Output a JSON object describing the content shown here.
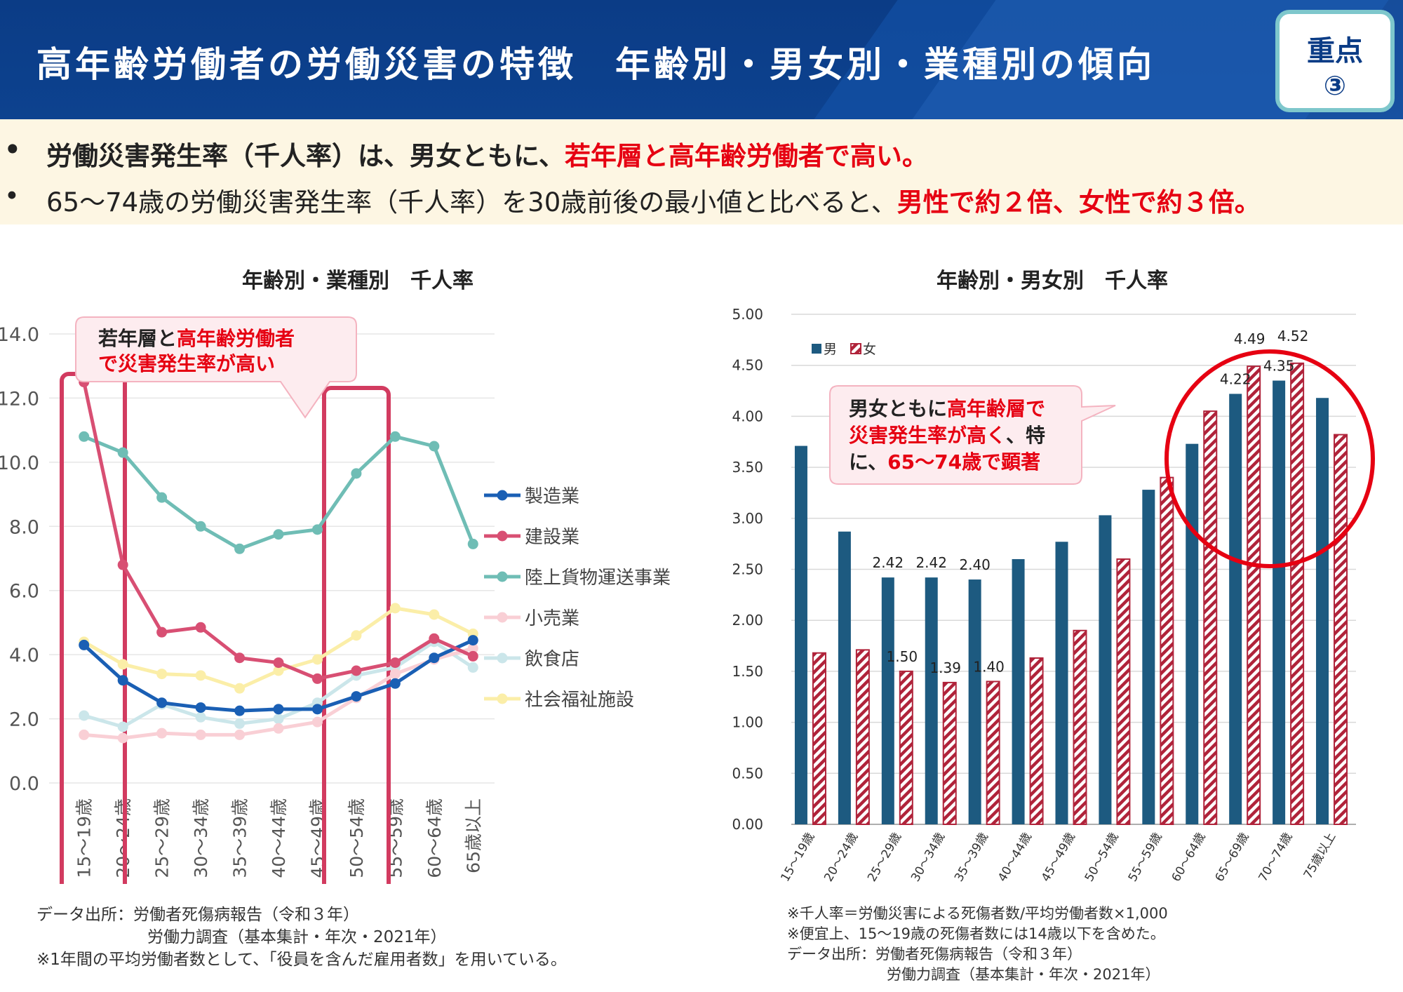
{
  "header": {
    "title": "高年齢労働者の労働災害の特徴　年齢別・男女別・業種別の傾向",
    "badge_line1": "重点",
    "badge_line2": "③"
  },
  "bullets": {
    "b1_dot": "•",
    "b1_text": "労働災害発生率（千人率）は、男女ともに、",
    "b1_red": "若年層と高年齢労働者で高い。",
    "b2_dot": "•",
    "b2_text": "65～74歳の労働災害発生率（千人率）を30歳前後の最小値と比べると、",
    "b2_red": "男性で約２倍、女性で約３倍。"
  },
  "left_callout": {
    "part1": "若年層と",
    "part2": "高年齢労働者",
    "part3": "で災害発生率が高い"
  },
  "right_callout": {
    "l1a": "男女ともに",
    "l1b": "高年齢層で",
    "l2a": "災害発生率が高く",
    "l2b": "、特",
    "l3a": "に、",
    "l3b": "65～74歳で顕著"
  },
  "footnotes_left": {
    "line1": "データ出所：労働者死傷病報告（令和３年）",
    "line2": "労働力調査（基本集計・年次・2021年）",
    "line3": "※1年間の平均労働者数として、「役員を含んだ雇用者数」を用いている。"
  },
  "footnotes_right": {
    "line1": "※千人率＝労働災害による死傷者数/平均労働者数×1,000",
    "line2": "※便宜上、15～19歳の死傷者数には14歳以下を含めた。",
    "line3": "データ出所：労働者死傷病報告（令和３年）",
    "line4": "労働力調査（基本集計・年次・2021年）"
  },
  "chart_data": [
    {
      "type": "line",
      "title": "年齢別・業種別　千人率",
      "categories": [
        "15～19歳",
        "20～24歳",
        "25～29歳",
        "30～34歳",
        "35～39歳",
        "40～44歳",
        "45～49歳",
        "50～54歳",
        "55～59歳",
        "60～64歳",
        "65歳以上"
      ],
      "ylim": [
        0,
        14
      ],
      "yticks": [
        "0.0",
        "2.0",
        "4.0",
        "6.0",
        "8.0",
        "10.0",
        "12.0",
        "14.0"
      ],
      "grid": true,
      "legend_position": "right",
      "series": [
        {
          "name": "製造業",
          "color": "#1a5fb4",
          "values": [
            4.3,
            3.2,
            2.5,
            2.35,
            2.25,
            2.3,
            2.3,
            2.7,
            3.1,
            3.9,
            4.45
          ]
        },
        {
          "name": "建設業",
          "color": "#d84f73",
          "values": [
            12.5,
            6.8,
            4.7,
            4.85,
            3.9,
            3.75,
            3.25,
            3.5,
            3.75,
            4.5,
            3.95
          ]
        },
        {
          "name": "陸上貨物運送事業",
          "color": "#6fbdb5",
          "values": [
            10.8,
            10.3,
            8.9,
            8.0,
            7.3,
            7.75,
            7.9,
            9.65,
            10.8,
            10.5,
            7.45
          ]
        },
        {
          "name": "小売業",
          "color": "#f9cfd5",
          "values": [
            1.5,
            1.4,
            1.55,
            1.5,
            1.5,
            1.7,
            1.9,
            2.65,
            3.4,
            3.85,
            4.2
          ]
        },
        {
          "name": "飲食店",
          "color": "#cbe6ea",
          "values": [
            2.1,
            1.75,
            2.45,
            2.05,
            1.85,
            2.0,
            2.5,
            3.35,
            3.6,
            4.4,
            3.6
          ]
        },
        {
          "name": "社会福祉施設",
          "color": "#fbeea8",
          "values": [
            4.4,
            3.7,
            3.4,
            3.35,
            2.95,
            3.5,
            3.85,
            4.6,
            5.45,
            5.25,
            4.65
          ]
        }
      ]
    },
    {
      "type": "bar",
      "title": "年齢別・男女別　千人率",
      "categories": [
        "15～19歳",
        "20～24歳",
        "25～29歳",
        "30～34歳",
        "35～39歳",
        "40～44歳",
        "45～49歳",
        "50～54歳",
        "55～59歳",
        "60～64歳",
        "65～69歳",
        "70～74歳",
        "75歳以上"
      ],
      "ylim": [
        0,
        5
      ],
      "yticks": [
        "0.00",
        "0.50",
        "1.00",
        "1.50",
        "2.00",
        "2.50",
        "3.00",
        "3.50",
        "4.00",
        "4.50",
        "5.00"
      ],
      "grid": true,
      "legend_position": "top-left",
      "series": [
        {
          "name": "男",
          "color": "#1d5a80",
          "values": [
            3.71,
            2.87,
            2.42,
            2.42,
            2.4,
            2.6,
            2.77,
            3.03,
            3.28,
            3.73,
            4.22,
            4.35,
            4.18
          ],
          "labels": [
            "",
            "",
            "2.42",
            "2.42",
            "2.40",
            "",
            "",
            "",
            "",
            "",
            "4.22",
            "4.35",
            ""
          ]
        },
        {
          "name": "女",
          "color": "#b0233a",
          "values": [
            1.68,
            1.71,
            1.5,
            1.39,
            1.4,
            1.63,
            1.9,
            2.6,
            3.4,
            4.05,
            4.49,
            4.52,
            3.82
          ],
          "labels": [
            "",
            "",
            "1.50",
            "1.39",
            "1.40",
            "",
            "",
            "",
            "",
            "",
            "4.49",
            "4.52",
            ""
          ]
        }
      ]
    }
  ]
}
